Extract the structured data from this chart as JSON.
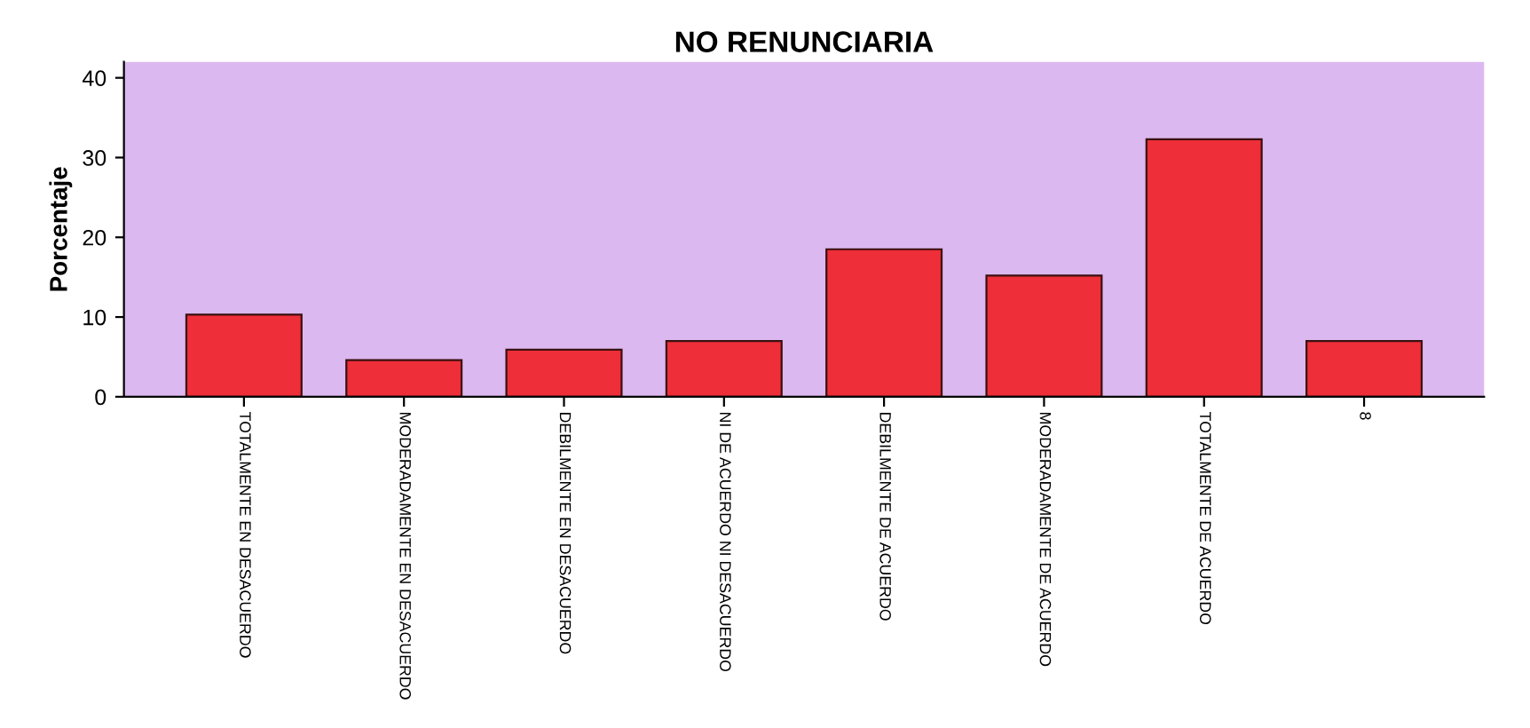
{
  "chart_data": {
    "type": "bar",
    "title": "NO RENUNCIARIA",
    "ylabel": "Porcentaje",
    "categories": [
      "TOTALMENTE EN DESACUERDO",
      "MODERADAMENTE EN DESACUERDO",
      "DEBILMENTE EN DESACUERDO",
      "NI DE ACUERDO NI DESACUERDO",
      "DEBILMENTE DE ACUERDO",
      "MODERADAMENTE DE ACUERDO",
      "TOTALMENTE DE ACUERDO",
      "8"
    ],
    "values": [
      10.3,
      4.6,
      5.9,
      7.0,
      18.5,
      15.2,
      32.3,
      7.0
    ],
    "color": "#ee2e38",
    "ylim": [
      0,
      42
    ],
    "yticks": [
      0,
      10,
      20,
      30,
      40
    ],
    "grid": false
  }
}
